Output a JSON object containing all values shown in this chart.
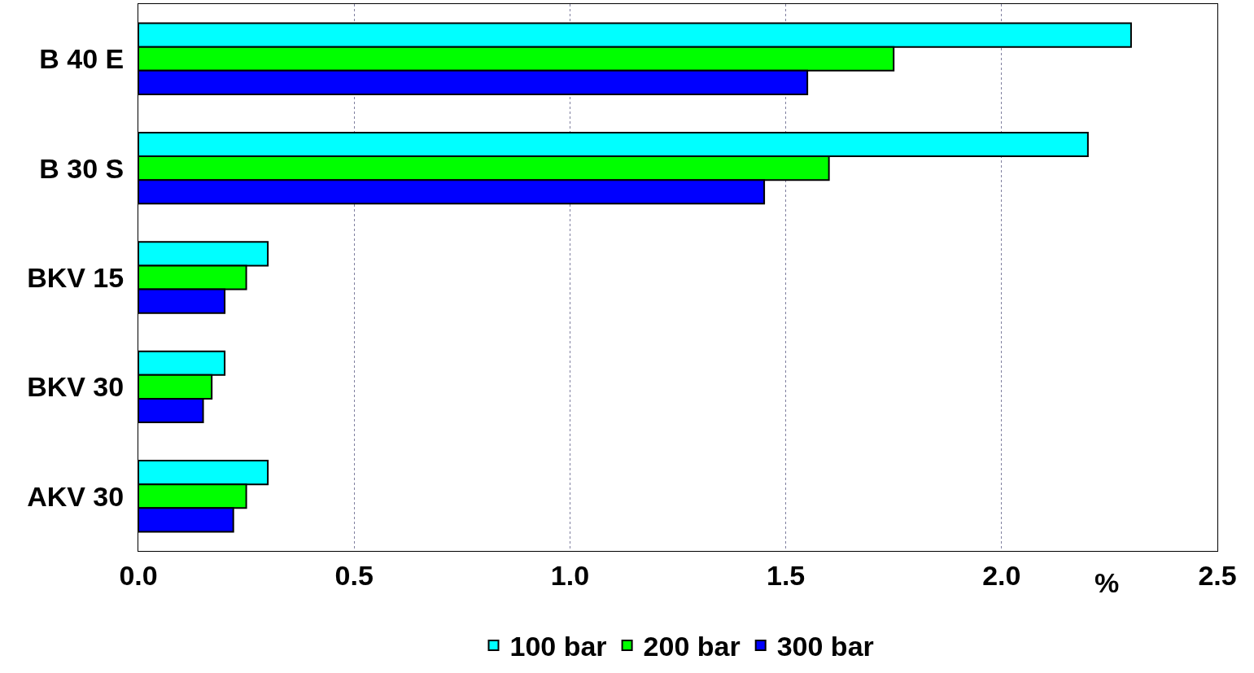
{
  "chart_data": {
    "type": "bar",
    "orientation": "horizontal",
    "xlabel": "%",
    "categories": [
      "B 40 E",
      "B 30 S",
      "BKV 15",
      "BKV 30",
      "AKV 30"
    ],
    "series": [
      {
        "name": "100 bar",
        "color": "#00ffff",
        "values": [
          2.3,
          2.2,
          0.3,
          0.2,
          0.3
        ]
      },
      {
        "name": "200 bar",
        "color": "#00ff00",
        "values": [
          1.75,
          1.6,
          0.25,
          0.17,
          0.25
        ]
      },
      {
        "name": "300 bar",
        "color": "#0000ff",
        "values": [
          1.55,
          1.45,
          0.2,
          0.15,
          0.22
        ]
      }
    ],
    "xlim": [
      0,
      2.5
    ],
    "xticks": [
      {
        "value": 0,
        "label": "0.0"
      },
      0.5,
      {
        "value": 1,
        "label": "1.0"
      },
      1.5,
      {
        "value": 2,
        "label": "2.0"
      },
      2.5
    ],
    "grid": "x",
    "legend": "bottom"
  }
}
